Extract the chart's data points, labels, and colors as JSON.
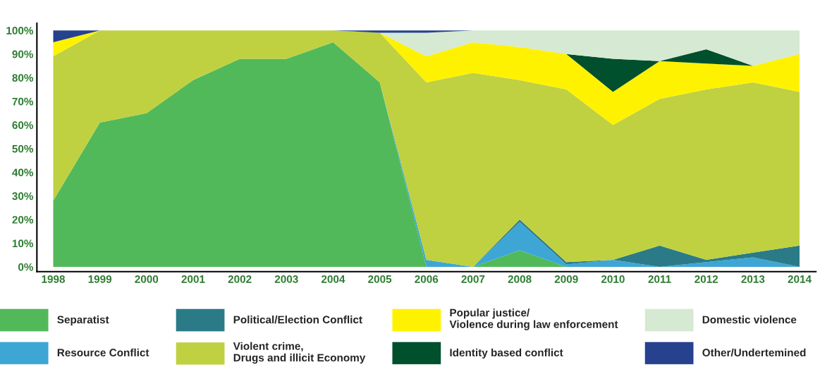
{
  "chart_data": {
    "type": "area",
    "stacked": true,
    "categories": [
      "1998",
      "1999",
      "2000",
      "2001",
      "2002",
      "2003",
      "2004",
      "2005",
      "2006",
      "2007",
      "2008",
      "2009",
      "2010",
      "2011",
      "2012",
      "2013",
      "2014"
    ],
    "series": [
      {
        "name": "Separatist",
        "color": "#52b95a",
        "values": [
          28,
          61,
          65,
          79,
          88,
          88,
          95,
          78,
          0,
          0,
          7,
          0,
          0,
          0,
          0,
          0,
          0
        ]
      },
      {
        "name": "Resource Conflict",
        "color": "#3ea6d5",
        "values": [
          null,
          null,
          null,
          null,
          null,
          null,
          null,
          0,
          3,
          0,
          12,
          1,
          3,
          0,
          2,
          4,
          0
        ]
      },
      {
        "name": "Political/Election Conflict",
        "color": "#2a7b87",
        "values": [
          null,
          null,
          null,
          null,
          null,
          null,
          null,
          null,
          null,
          0,
          1,
          1,
          0,
          9,
          1,
          2,
          9
        ]
      },
      {
        "name": "Violent crime,\nDrugs and illicit Economy",
        "color": "#bfd141",
        "values": [
          61,
          39,
          35,
          21,
          12,
          12,
          5,
          21,
          75,
          82,
          59,
          73,
          57,
          62,
          72,
          72,
          65
        ]
      },
      {
        "name": "Popular justice/\nViolence during law enforcement",
        "color": "#fff200",
        "values": [
          6,
          0,
          null,
          null,
          null,
          null,
          0,
          0,
          11,
          13,
          14,
          15,
          14,
          16,
          11,
          7,
          16
        ]
      },
      {
        "name": "Identity based conflict",
        "color": "#004f2d",
        "values": [
          null,
          null,
          null,
          null,
          null,
          null,
          null,
          null,
          null,
          null,
          null,
          0,
          14,
          0,
          6,
          0,
          null
        ]
      },
      {
        "name": "Domestic violence",
        "color": "#d6e9d2",
        "values": [
          null,
          null,
          null,
          null,
          null,
          null,
          null,
          0,
          10,
          5,
          7,
          10,
          12,
          13,
          8,
          15,
          10
        ]
      },
      {
        "name": "Other/Undertemined",
        "color": "#26418e",
        "values": [
          5,
          0,
          null,
          null,
          null,
          null,
          0,
          1,
          1,
          0,
          null,
          null,
          null,
          null,
          null,
          null,
          null
        ]
      }
    ],
    "ylim": [
      -2,
      103
    ],
    "yticks": [
      {
        "value": 0,
        "label": "0%"
      },
      {
        "value": 10,
        "label": "10%"
      },
      {
        "value": 20,
        "label": "20%"
      },
      {
        "value": 30,
        "label": "30%"
      },
      {
        "value": 40,
        "label": "40%"
      },
      {
        "value": 50,
        "label": "50%"
      },
      {
        "value": 60,
        "label": "60%"
      },
      {
        "value": 70,
        "label": "70%"
      },
      {
        "value": 80,
        "label": "80%"
      },
      {
        "value": 90,
        "label": "90%"
      },
      {
        "value": 100,
        "label": "100%"
      }
    ],
    "legend": "bottom",
    "grid": false
  }
}
